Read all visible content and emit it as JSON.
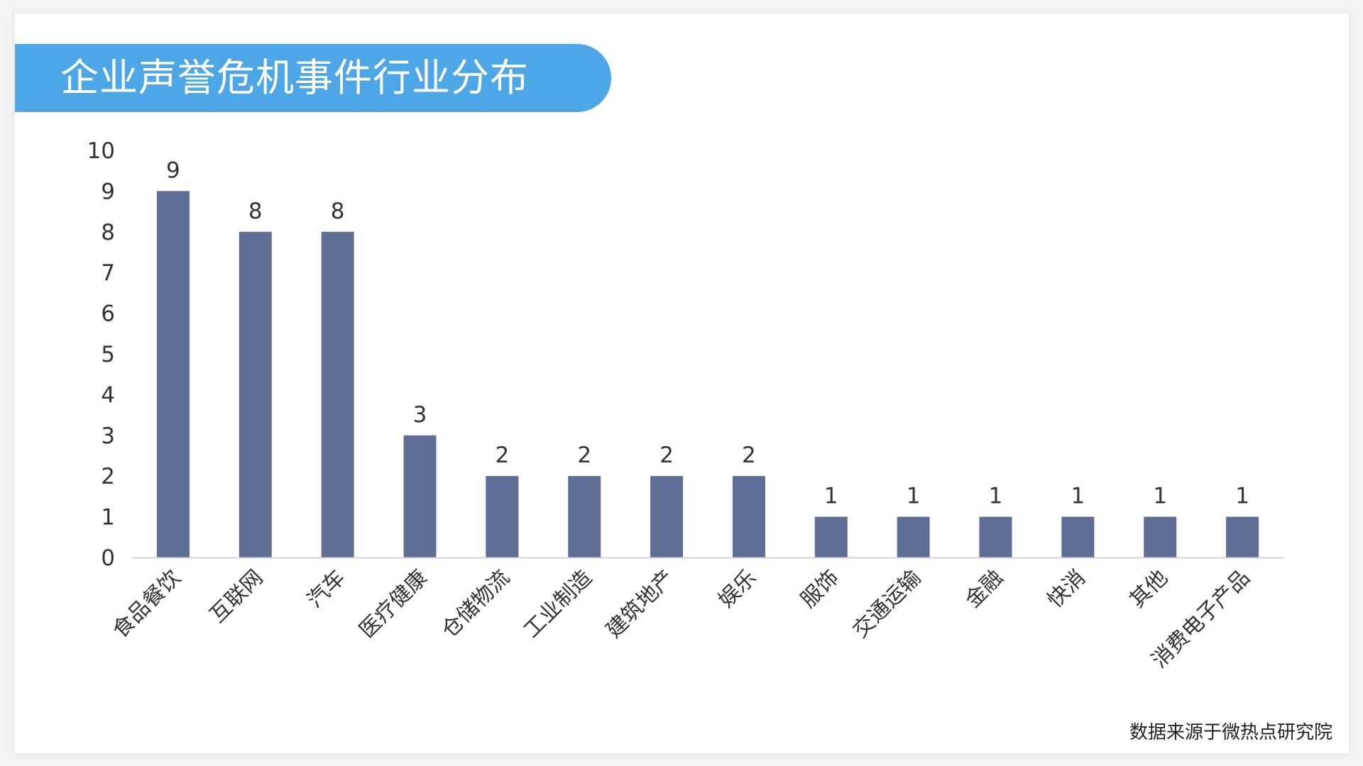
{
  "title": "企业声誉危机事件行业分布",
  "source": "数据来源于微热点研究院",
  "colors": {
    "banner": "#4da6e6",
    "bar": "#5f6e94",
    "axis_text": "#333333"
  },
  "chart_data": {
    "type": "bar",
    "title": "企业声誉危机事件行业分布",
    "categories": [
      "食品餐饮",
      "互联网",
      "汽车",
      "医疗健康",
      "仓储物流",
      "工业制造",
      "建筑地产",
      "娱乐",
      "服饰",
      "交通运输",
      "金融",
      "快消",
      "其他",
      "消费电子产品"
    ],
    "values": [
      9,
      8,
      8,
      3,
      2,
      2,
      2,
      2,
      1,
      1,
      1,
      1,
      1,
      1
    ],
    "ylim": [
      0,
      10
    ],
    "yticks": [
      0,
      1,
      2,
      3,
      4,
      5,
      6,
      7,
      8,
      9,
      10
    ],
    "data_labels": true,
    "grid": false,
    "xlabel": "",
    "ylabel": ""
  }
}
